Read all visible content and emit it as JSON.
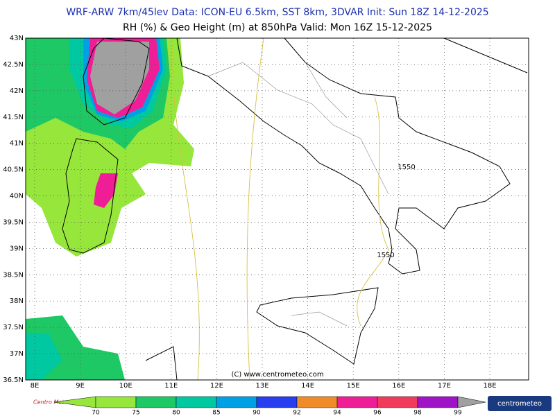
{
  "header": {
    "line1": "WRF-ARW 7km/45lev   Data: ICON-EU 6.5km, SST 8km, 3DVAR   Init: Sun 18Z 14-12-2025",
    "line2": "RH (%) & Geo Height (m) at 850hPa   Valid: Mon 16Z 15-12-2025"
  },
  "map": {
    "lat_labels": [
      "43N",
      "42.5N",
      "42N",
      "41.5N",
      "41N",
      "40.5N",
      "40N",
      "39.5N",
      "39N",
      "38.5N",
      "38N",
      "37.5N",
      "37N",
      "36.5N"
    ],
    "lon_labels": [
      "8E",
      "9E",
      "10E",
      "11E",
      "12E",
      "13E",
      "14E",
      "15E",
      "16E",
      "17E",
      "18E"
    ],
    "contour_labels": [
      "1550",
      "1550"
    ],
    "copyright": "(C) www.centrometeo.com"
  },
  "legend": {
    "levels": [
      70,
      75,
      80,
      85,
      90,
      92,
      94,
      96,
      98,
      99
    ],
    "colors": [
      "#96e63c",
      "#1ec864",
      "#00c8a0",
      "#00a0e6",
      "#283cf0",
      "#f08c28",
      "#f01e96",
      "#f03c5a",
      "#a014c8"
    ],
    "over_color": "#a0a0a0"
  },
  "footer": {
    "left_logo": "Centro Meteo Aquaro",
    "right_logo": "centrometeo"
  }
}
